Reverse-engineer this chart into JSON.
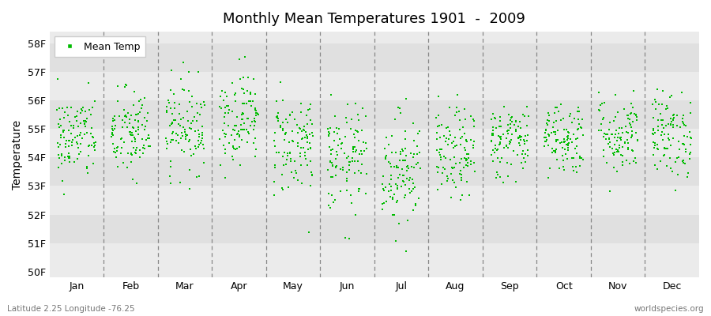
{
  "title": "Monthly Mean Temperatures 1901  -  2009",
  "ylabel": "Temperature",
  "xlabel_months": [
    "Jan",
    "Feb",
    "Mar",
    "Apr",
    "May",
    "Jun",
    "Jul",
    "Aug",
    "Sep",
    "Oct",
    "Nov",
    "Dec"
  ],
  "yticks": [
    "50F",
    "51F",
    "52F",
    "53F",
    "54F",
    "55F",
    "56F",
    "57F",
    "58F"
  ],
  "ytick_vals": [
    50,
    51,
    52,
    53,
    54,
    55,
    56,
    57,
    58
  ],
  "ylim": [
    49.8,
    58.4
  ],
  "marker_color": "#00bb00",
  "bg_color_light": "#ebebeb",
  "bg_color_dark": "#e0e0e0",
  "footer_left": "Latitude 2.25 Longitude -76.25",
  "footer_right": "worldspecies.org",
  "legend_label": "Mean Temp",
  "n_years": 109,
  "monthly_means": [
    54.7,
    54.8,
    55.1,
    55.4,
    54.5,
    53.9,
    53.6,
    54.1,
    54.6,
    54.7,
    54.8,
    54.8
  ],
  "monthly_stds": [
    0.75,
    0.8,
    0.8,
    0.8,
    0.9,
    0.95,
    1.0,
    0.8,
    0.65,
    0.65,
    0.7,
    0.75
  ],
  "seed": 42,
  "marker_size": 4,
  "dashed_color": "#888888",
  "dashed_lw": 0.9
}
